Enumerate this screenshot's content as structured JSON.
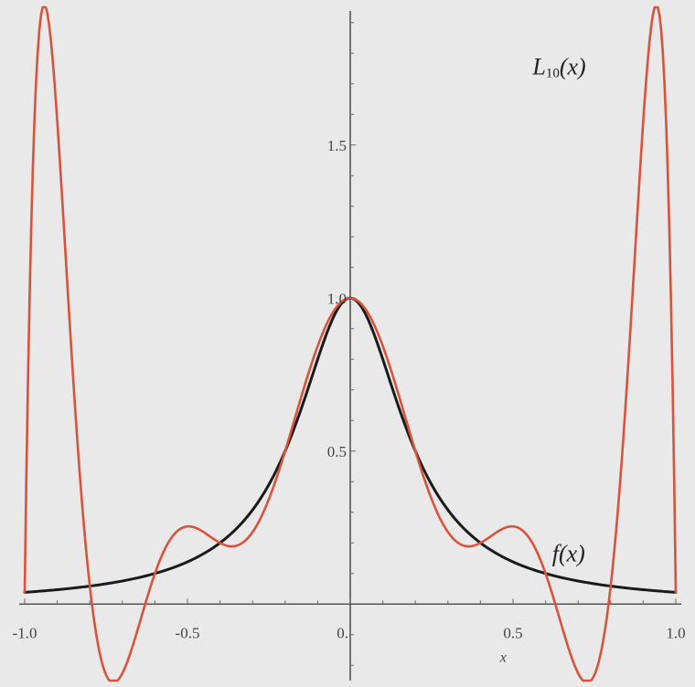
{
  "chart_data": {
    "type": "line",
    "xlim": [
      -1.0,
      1.0
    ],
    "ylim": [
      -0.25,
      1.95
    ],
    "x_ticks": [
      {
        "value": -1.0,
        "label": "-1.0"
      },
      {
        "value": -0.5,
        "label": "-0.5"
      },
      {
        "value": 0,
        "label": "0."
      },
      {
        "value": 0.5,
        "label": "0.5"
      },
      {
        "value": 1.0,
        "label": "1.0"
      }
    ],
    "y_ticks": [
      {
        "value": 0.5,
        "label": "0.5"
      },
      {
        "value": 1.0,
        "label": "1.0"
      },
      {
        "value": 1.5,
        "label": "1.5"
      }
    ],
    "xlabel": "x",
    "grid": false,
    "series": [
      {
        "name": "f(x)",
        "name_parts": [
          "f(x)"
        ],
        "color": "#1a1a1a",
        "x": [
          -1.0,
          -0.9,
          -0.8,
          -0.7,
          -0.6,
          -0.5,
          -0.4,
          -0.3,
          -0.2,
          -0.1,
          0.0,
          0.1,
          0.2,
          0.3,
          0.4,
          0.5,
          0.6,
          0.7,
          0.8,
          0.9,
          1.0
        ],
        "y": [
          0.038,
          0.047,
          0.059,
          0.075,
          0.1,
          0.138,
          0.2,
          0.308,
          0.5,
          0.8,
          1.0,
          0.8,
          0.5,
          0.308,
          0.2,
          0.138,
          0.1,
          0.075,
          0.059,
          0.047,
          0.038
        ]
      },
      {
        "name": "L10(x)",
        "name_parts": [
          "L",
          "10",
          "(x)"
        ],
        "color": "#d9533b",
        "x": [
          -1.0,
          -0.9,
          -0.8,
          -0.7,
          -0.6,
          -0.5,
          -0.4,
          -0.3,
          -0.2,
          -0.1,
          0.0,
          0.1,
          0.2,
          0.3,
          0.4,
          0.5,
          0.6,
          0.7,
          0.8,
          0.9,
          1.0
        ],
        "y": [
          0.038,
          1.579,
          -0.048,
          -0.226,
          0.08,
          0.254,
          0.2,
          0.235,
          0.5,
          0.843,
          1.0,
          0.843,
          0.5,
          0.235,
          0.2,
          0.254,
          0.08,
          -0.226,
          -0.048,
          1.579,
          0.038
        ]
      }
    ],
    "annotations": [
      {
        "series": 1,
        "text_parts": [
          "L",
          "10",
          "(x)"
        ],
        "anchor": {
          "x": 0.56,
          "y": 1.73
        }
      },
      {
        "series": 0,
        "text_parts": [
          "f(x)"
        ],
        "anchor": {
          "x": 0.62,
          "y": 0.14
        }
      }
    ]
  }
}
